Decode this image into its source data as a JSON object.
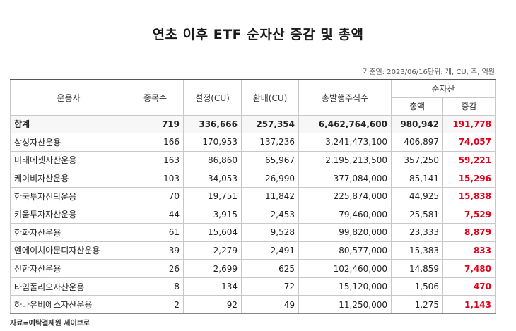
{
  "title": "연초 이후 ETF 순자산 증감 및 총액",
  "meta": "기준일: 2023/06/16단위: 개, CU, 주, 억원",
  "headers": {
    "company": "운용사",
    "count": "종목수",
    "creation": "설정(CU)",
    "redemption": "환매(CU)",
    "shares": "총발행주식수",
    "net_assets": "순자산",
    "total": "총액",
    "change": "증감"
  },
  "rows": [
    {
      "name": "합계",
      "count": "719",
      "creation": "336,666",
      "redemption": "257,354",
      "shares": "6,462,764,600",
      "total": "980,942",
      "change": "191,778"
    },
    {
      "name": "삼성자산운용",
      "count": "166",
      "creation": "170,953",
      "redemption": "137,236",
      "shares": "3,241,473,100",
      "total": "406,897",
      "change": "74,057"
    },
    {
      "name": "미래에셋자산운용",
      "count": "163",
      "creation": "86,860",
      "redemption": "65,967",
      "shares": "2,195,213,500",
      "total": "357,250",
      "change": "59,221"
    },
    {
      "name": "케이비자산운용",
      "count": "103",
      "creation": "34,053",
      "redemption": "26,990",
      "shares": "377,084,000",
      "total": "85,141",
      "change": "15,296"
    },
    {
      "name": "한국투자신탁운용",
      "count": "70",
      "creation": "19,751",
      "redemption": "11,842",
      "shares": "225,874,000",
      "total": "44,925",
      "change": "15,838"
    },
    {
      "name": "키움투자자산운용",
      "count": "44",
      "creation": "3,915",
      "redemption": "2,453",
      "shares": "79,460,000",
      "total": "25,581",
      "change": "7,529"
    },
    {
      "name": "한화자산운용",
      "count": "61",
      "creation": "15,604",
      "redemption": "9,528",
      "shares": "99,820,000",
      "total": "23,333",
      "change": "8,879"
    },
    {
      "name": "엔에이치아문디자산운용",
      "count": "39",
      "creation": "2,279",
      "redemption": "2,491",
      "shares": "80,577,000",
      "total": "15,383",
      "change": "833"
    },
    {
      "name": "신한자산운용",
      "count": "26",
      "creation": "2,699",
      "redemption": "625",
      "shares": "102,460,000",
      "total": "14,859",
      "change": "7,480"
    },
    {
      "name": "타임폴리오자산운용",
      "count": "8",
      "creation": "134",
      "redemption": "72",
      "shares": "15,120,000",
      "total": "1,506",
      "change": "470"
    },
    {
      "name": "하나유비에스자산운용",
      "count": "2",
      "creation": "92",
      "redemption": "49",
      "shares": "11,250,000",
      "total": "1,275",
      "change": "1,143"
    }
  ],
  "source": "자료=예탁결제원 세이브로",
  "colors": {
    "increase": "#e3001b"
  }
}
